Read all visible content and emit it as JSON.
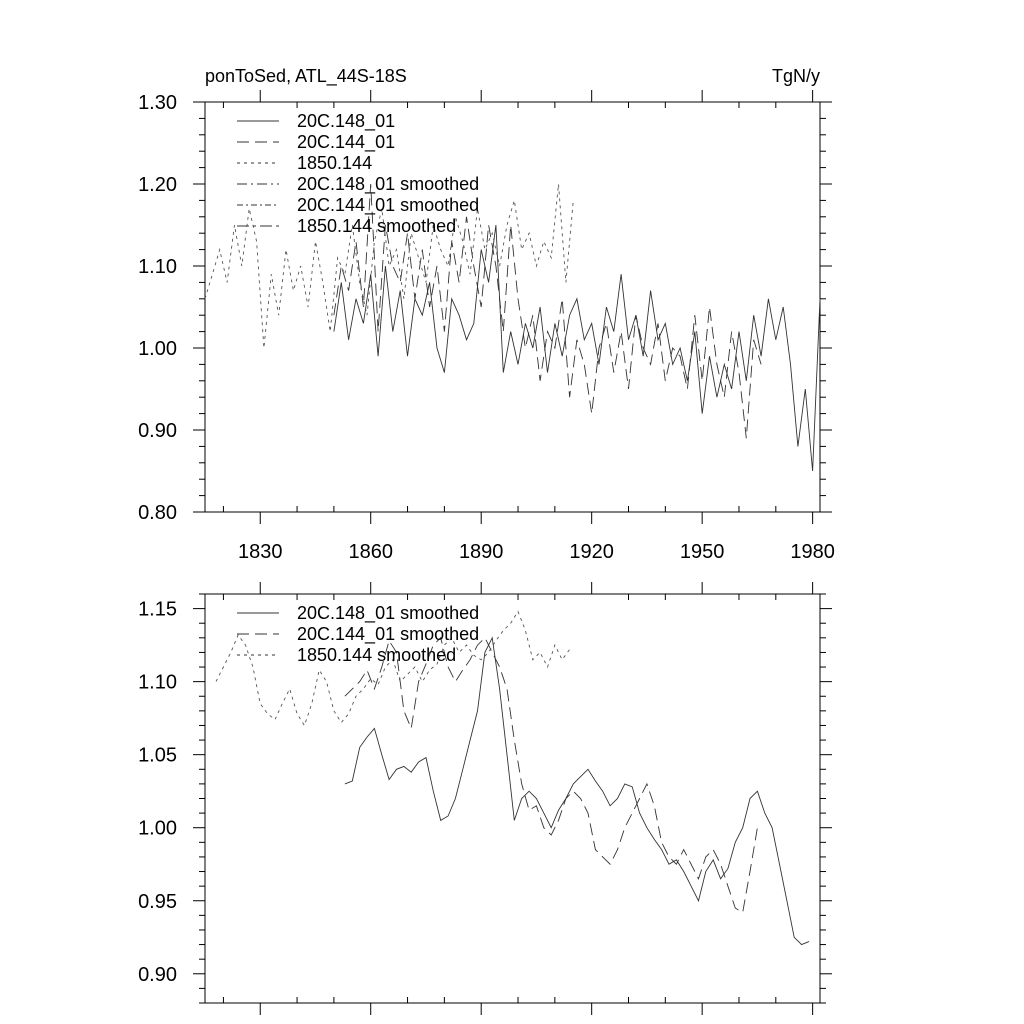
{
  "chart_data": [
    {
      "type": "line",
      "title": "ponToSed, ATL_44S-18S",
      "units": "TgN/y",
      "xlabel": "",
      "ylabel": "",
      "xlim": [
        1815,
        1982
      ],
      "ylim": [
        0.8,
        1.3
      ],
      "xticks": [
        1830,
        1860,
        1890,
        1920,
        1950,
        1980
      ],
      "yticks": [
        0.8,
        0.9,
        1.0,
        1.1,
        1.2,
        1.3
      ],
      "ytick_labels": [
        "0.80",
        "0.90",
        "1.00",
        "1.10",
        "1.20",
        "1.30"
      ],
      "legend": [
        "20C.148_01",
        "20C.144_01",
        "1850.144",
        "20C.148_01 smoothed",
        "20C.144_01 smoothed",
        "1850.144 smoothed"
      ],
      "series": [
        {
          "name": "20C.148_01",
          "x": [
            1850,
            1852,
            1854,
            1856,
            1858,
            1860,
            1862,
            1864,
            1866,
            1868,
            1870,
            1872,
            1874,
            1876,
            1878,
            1880,
            1882,
            1884,
            1886,
            1888,
            1890,
            1892,
            1894,
            1896,
            1898,
            1900,
            1902,
            1904,
            1906,
            1908,
            1910,
            1912,
            1914,
            1916,
            1918,
            1920,
            1922,
            1924,
            1926,
            1928,
            1930,
            1932,
            1934,
            1936,
            1938,
            1940,
            1942,
            1944,
            1946,
            1948,
            1950,
            1952,
            1954,
            1956,
            1958,
            1960,
            1962,
            1964,
            1966,
            1968,
            1970,
            1972,
            1974,
            1976,
            1978,
            1980,
            1982
          ],
          "y": [
            1.02,
            1.08,
            1.01,
            1.06,
            1.03,
            1.09,
            0.99,
            1.1,
            1.02,
            1.07,
            0.99,
            1.06,
            1.04,
            1.08,
            1.0,
            0.97,
            1.06,
            1.04,
            1.01,
            1.03,
            1.12,
            1.08,
            1.15,
            0.97,
            1.02,
            0.98,
            1.03,
            1.0,
            1.05,
            0.97,
            1.03,
            0.99,
            1.04,
            1.06,
            1.01,
            1.03,
            0.98,
            1.05,
            1.02,
            1.09,
            1.01,
            1.04,
            0.99,
            1.07,
            1.01,
            1.03,
            0.98,
            1.0,
            0.96,
            1.02,
            0.92,
            0.99,
            0.94,
            0.98,
            0.95,
            1.02,
            0.96,
            1.04,
            0.99,
            1.06,
            1.01,
            1.05,
            0.98,
            0.88,
            0.95,
            0.85,
            1.06
          ]
        },
        {
          "name": "20C.144_01",
          "x": [
            1850,
            1852,
            1854,
            1856,
            1858,
            1860,
            1862,
            1864,
            1866,
            1868,
            1870,
            1872,
            1874,
            1876,
            1878,
            1880,
            1882,
            1884,
            1886,
            1888,
            1890,
            1892,
            1894,
            1896,
            1898,
            1900,
            1902,
            1904,
            1906,
            1908,
            1910,
            1912,
            1914,
            1916,
            1918,
            1920,
            1922,
            1924,
            1926,
            1928,
            1930,
            1932,
            1934,
            1936,
            1938,
            1940,
            1942,
            1944,
            1946,
            1948,
            1950,
            1952,
            1954,
            1956,
            1958,
            1960,
            1962,
            1964,
            1966
          ],
          "y": [
            1.04,
            1.1,
            1.07,
            1.13,
            1.05,
            1.2,
            1.02,
            1.15,
            1.1,
            1.08,
            1.14,
            1.06,
            1.12,
            1.05,
            1.1,
            1.02,
            1.13,
            1.08,
            1.16,
            1.1,
            1.05,
            1.15,
            1.1,
            1.02,
            1.15,
            1.06,
            1.0,
            1.04,
            0.96,
            1.02,
            1.0,
            1.06,
            0.94,
            1.01,
            0.98,
            0.92,
            1.0,
            1.03,
            0.97,
            1.02,
            0.95,
            1.04,
            1.0,
            0.98,
            1.03,
            0.96,
            1.0,
            0.99,
            0.95,
            1.04,
            0.96,
            1.05,
            0.98,
            0.94,
            1.02,
            0.97,
            0.89,
            1.01,
            0.98
          ]
        },
        {
          "name": "1850.144",
          "x": [
            1815,
            1817,
            1819,
            1821,
            1823,
            1825,
            1827,
            1829,
            1831,
            1833,
            1835,
            1837,
            1839,
            1841,
            1843,
            1845,
            1847,
            1849,
            1851,
            1853,
            1855,
            1857,
            1859,
            1861,
            1863,
            1865,
            1867,
            1869,
            1871,
            1873,
            1875,
            1877,
            1879,
            1881,
            1883,
            1885,
            1887,
            1889,
            1891,
            1893,
            1895,
            1897,
            1899,
            1901,
            1903,
            1905,
            1907,
            1909,
            1911,
            1913,
            1915
          ],
          "y": [
            1.06,
            1.09,
            1.12,
            1.08,
            1.15,
            1.1,
            1.17,
            1.13,
            1.0,
            1.09,
            1.04,
            1.12,
            1.07,
            1.1,
            1.05,
            1.13,
            1.08,
            1.02,
            1.11,
            1.09,
            1.15,
            1.08,
            1.04,
            1.13,
            1.17,
            1.1,
            1.12,
            1.06,
            1.14,
            1.11,
            1.08,
            1.15,
            1.12,
            1.1,
            1.16,
            1.13,
            1.09,
            1.17,
            1.12,
            1.14,
            1.1,
            1.15,
            1.18,
            1.12,
            1.14,
            1.1,
            1.13,
            1.11,
            1.2,
            1.08,
            1.18
          ]
        }
      ]
    },
    {
      "type": "line",
      "xlim": [
        1815,
        1982
      ],
      "ylim": [
        0.88,
        1.16
      ],
      "xticks": [
        1830,
        1860,
        1890,
        1920,
        1950,
        1980
      ],
      "yticks": [
        0.9,
        0.95,
        1.0,
        1.05,
        1.1,
        1.15
      ],
      "ytick_labels": [
        "0.90",
        "0.95",
        "1.00",
        "1.05",
        "1.10",
        "1.15"
      ],
      "legend": [
        "20C.148_01 smoothed",
        "20C.144_01 smoothed",
        "1850.144 smoothed"
      ],
      "series": [
        {
          "name": "20C.148_01 smoothed",
          "x": [
            1853,
            1855,
            1857,
            1859,
            1861,
            1863,
            1865,
            1867,
            1869,
            1871,
            1873,
            1875,
            1877,
            1879,
            1881,
            1883,
            1885,
            1887,
            1889,
            1891,
            1893,
            1895,
            1897,
            1899,
            1901,
            1903,
            1905,
            1907,
            1909,
            1911,
            1913,
            1915,
            1917,
            1919,
            1921,
            1923,
            1925,
            1927,
            1929,
            1931,
            1933,
            1935,
            1937,
            1939,
            1941,
            1943,
            1945,
            1947,
            1949,
            1951,
            1953,
            1955,
            1957,
            1959,
            1961,
            1963,
            1965,
            1967,
            1969,
            1971,
            1973,
            1975,
            1977,
            1979
          ],
          "y": [
            1.03,
            1.032,
            1.055,
            1.062,
            1.068,
            1.05,
            1.033,
            1.04,
            1.042,
            1.038,
            1.045,
            1.048,
            1.025,
            1.005,
            1.008,
            1.02,
            1.04,
            1.06,
            1.08,
            1.12,
            1.13,
            1.095,
            1.05,
            1.005,
            1.02,
            1.025,
            1.02,
            1.01,
            1.0,
            1.012,
            1.02,
            1.03,
            1.035,
            1.04,
            1.032,
            1.025,
            1.015,
            1.02,
            1.03,
            1.028,
            1.01,
            1.0,
            0.992,
            0.985,
            0.975,
            0.978,
            0.97,
            0.96,
            0.95,
            0.97,
            0.978,
            0.965,
            0.972,
            0.99,
            1.0,
            1.02,
            1.025,
            1.01,
            1.0,
            0.975,
            0.95,
            0.925,
            0.92,
            0.922
          ]
        },
        {
          "name": "20C.144_01 smoothed",
          "x": [
            1853,
            1855,
            1857,
            1859,
            1861,
            1863,
            1865,
            1867,
            1869,
            1871,
            1873,
            1875,
            1877,
            1879,
            1881,
            1883,
            1885,
            1887,
            1889,
            1891,
            1893,
            1895,
            1897,
            1899,
            1901,
            1903,
            1905,
            1907,
            1909,
            1911,
            1913,
            1915,
            1917,
            1919,
            1921,
            1923,
            1925,
            1927,
            1929,
            1931,
            1933,
            1935,
            1937,
            1939,
            1941,
            1943,
            1945,
            1947,
            1949,
            1951,
            1953,
            1955,
            1957,
            1959,
            1961,
            1963,
            1965
          ],
          "y": [
            1.09,
            1.095,
            1.1,
            1.108,
            1.095,
            1.11,
            1.128,
            1.12,
            1.08,
            1.068,
            1.1,
            1.112,
            1.125,
            1.13,
            1.11,
            1.1,
            1.108,
            1.115,
            1.125,
            1.13,
            1.12,
            1.11,
            1.095,
            1.06,
            1.03,
            1.012,
            1.015,
            1.0,
            0.995,
            1.005,
            1.02,
            1.025,
            1.02,
            1.01,
            0.985,
            0.98,
            0.975,
            0.985,
            1.0,
            1.01,
            1.02,
            1.03,
            1.015,
            0.99,
            0.98,
            0.975,
            0.985,
            0.975,
            0.965,
            0.98,
            0.985,
            0.975,
            0.96,
            0.945,
            0.942,
            0.97,
            1.0
          ]
        },
        {
          "name": "1850.144 smoothed",
          "x": [
            1818,
            1820,
            1822,
            1824,
            1826,
            1828,
            1830,
            1832,
            1834,
            1836,
            1838,
            1840,
            1842,
            1844,
            1846,
            1848,
            1850,
            1852,
            1854,
            1856,
            1858,
            1860,
            1862,
            1864,
            1866,
            1868,
            1870,
            1872,
            1874,
            1876,
            1878,
            1880,
            1882,
            1884,
            1886,
            1888,
            1890,
            1892,
            1894,
            1896,
            1898,
            1900,
            1902,
            1904,
            1906,
            1908,
            1910,
            1912,
            1914
          ],
          "y": [
            1.1,
            1.11,
            1.12,
            1.132,
            1.125,
            1.11,
            1.085,
            1.078,
            1.074,
            1.085,
            1.095,
            1.078,
            1.07,
            1.085,
            1.108,
            1.1,
            1.08,
            1.072,
            1.078,
            1.09,
            1.095,
            1.102,
            1.098,
            1.11,
            1.115,
            1.1,
            1.105,
            1.11,
            1.1,
            1.108,
            1.112,
            1.125,
            1.13,
            1.12,
            1.125,
            1.118,
            1.115,
            1.12,
            1.128,
            1.135,
            1.14,
            1.148,
            1.135,
            1.115,
            1.12,
            1.11,
            1.125,
            1.115,
            1.122
          ]
        }
      ]
    }
  ]
}
